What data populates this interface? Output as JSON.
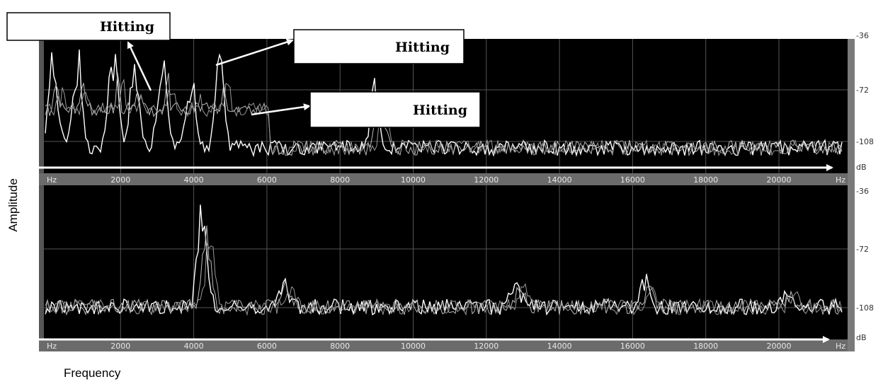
{
  "annotations": [
    "Hitting",
    "Hitting",
    "Hitting"
  ],
  "y_label": "Amplitude",
  "x_label": "Frequency",
  "panels": [
    {
      "x_ticks": [
        "Hz",
        "2000",
        "4000",
        "6000",
        "8000",
        "10000",
        "12000",
        "14000",
        "16000",
        "18000",
        "20000",
        "Hz"
      ],
      "y_ticks": [
        "-36",
        "-72",
        "-108",
        "dB"
      ]
    },
    {
      "x_ticks": [
        "Hz",
        "2000",
        "4000",
        "6000",
        "8000",
        "10000",
        "12000",
        "14000",
        "16000",
        "18000",
        "20000",
        "Hz"
      ],
      "y_ticks": [
        "-36",
        "-72",
        "-108",
        "dB"
      ]
    }
  ]
}
